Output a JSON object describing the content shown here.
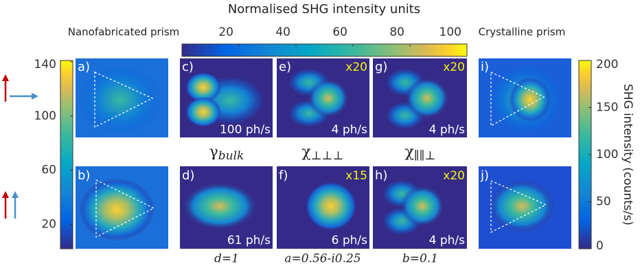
{
  "top_colorbar": {
    "title": "Normalised SHG intensity units",
    "lim": [
      0,
      100
    ],
    "ticks": [
      20,
      40,
      60,
      80,
      100
    ]
  },
  "left_colorbar": {
    "title": "Nanofabricated prism",
    "lim": [
      2,
      141
    ],
    "ticks": [
      20,
      60,
      100,
      140
    ]
  },
  "right_colorbar": {
    "title": "Crystalline prism",
    "axis_label": "SHG intensity (counts/s)",
    "lim": [
      0,
      200
    ],
    "ticks": [
      0,
      50,
      100,
      150,
      200
    ]
  },
  "panels": [
    {
      "label": "a)"
    },
    {
      "label": "b)"
    },
    {
      "label": "c)",
      "rate": "100 ph/s"
    },
    {
      "label": "d)",
      "rate": "61 ph/s"
    },
    {
      "label": "e)",
      "factor": "x20",
      "rate": "4 ph/s"
    },
    {
      "label": "f)",
      "factor": "x15",
      "rate": "6 ph/s"
    },
    {
      "label": "g)",
      "factor": "x20",
      "rate": "4 ph/s"
    },
    {
      "label": "h)",
      "factor": "x20",
      "rate": "4 ph/s"
    },
    {
      "label": "i)"
    },
    {
      "label": "j)"
    }
  ],
  "column_labels": [
    {
      "symbol": "γ",
      "sub": "bulk"
    },
    {
      "symbol": "χ",
      "sub": "⊥⊥⊥"
    },
    {
      "symbol": "χ",
      "sub": "∥∥⊥"
    }
  ],
  "parameters": [
    "d=1",
    "a=0.56-i0.25",
    "b=0.1"
  ]
}
